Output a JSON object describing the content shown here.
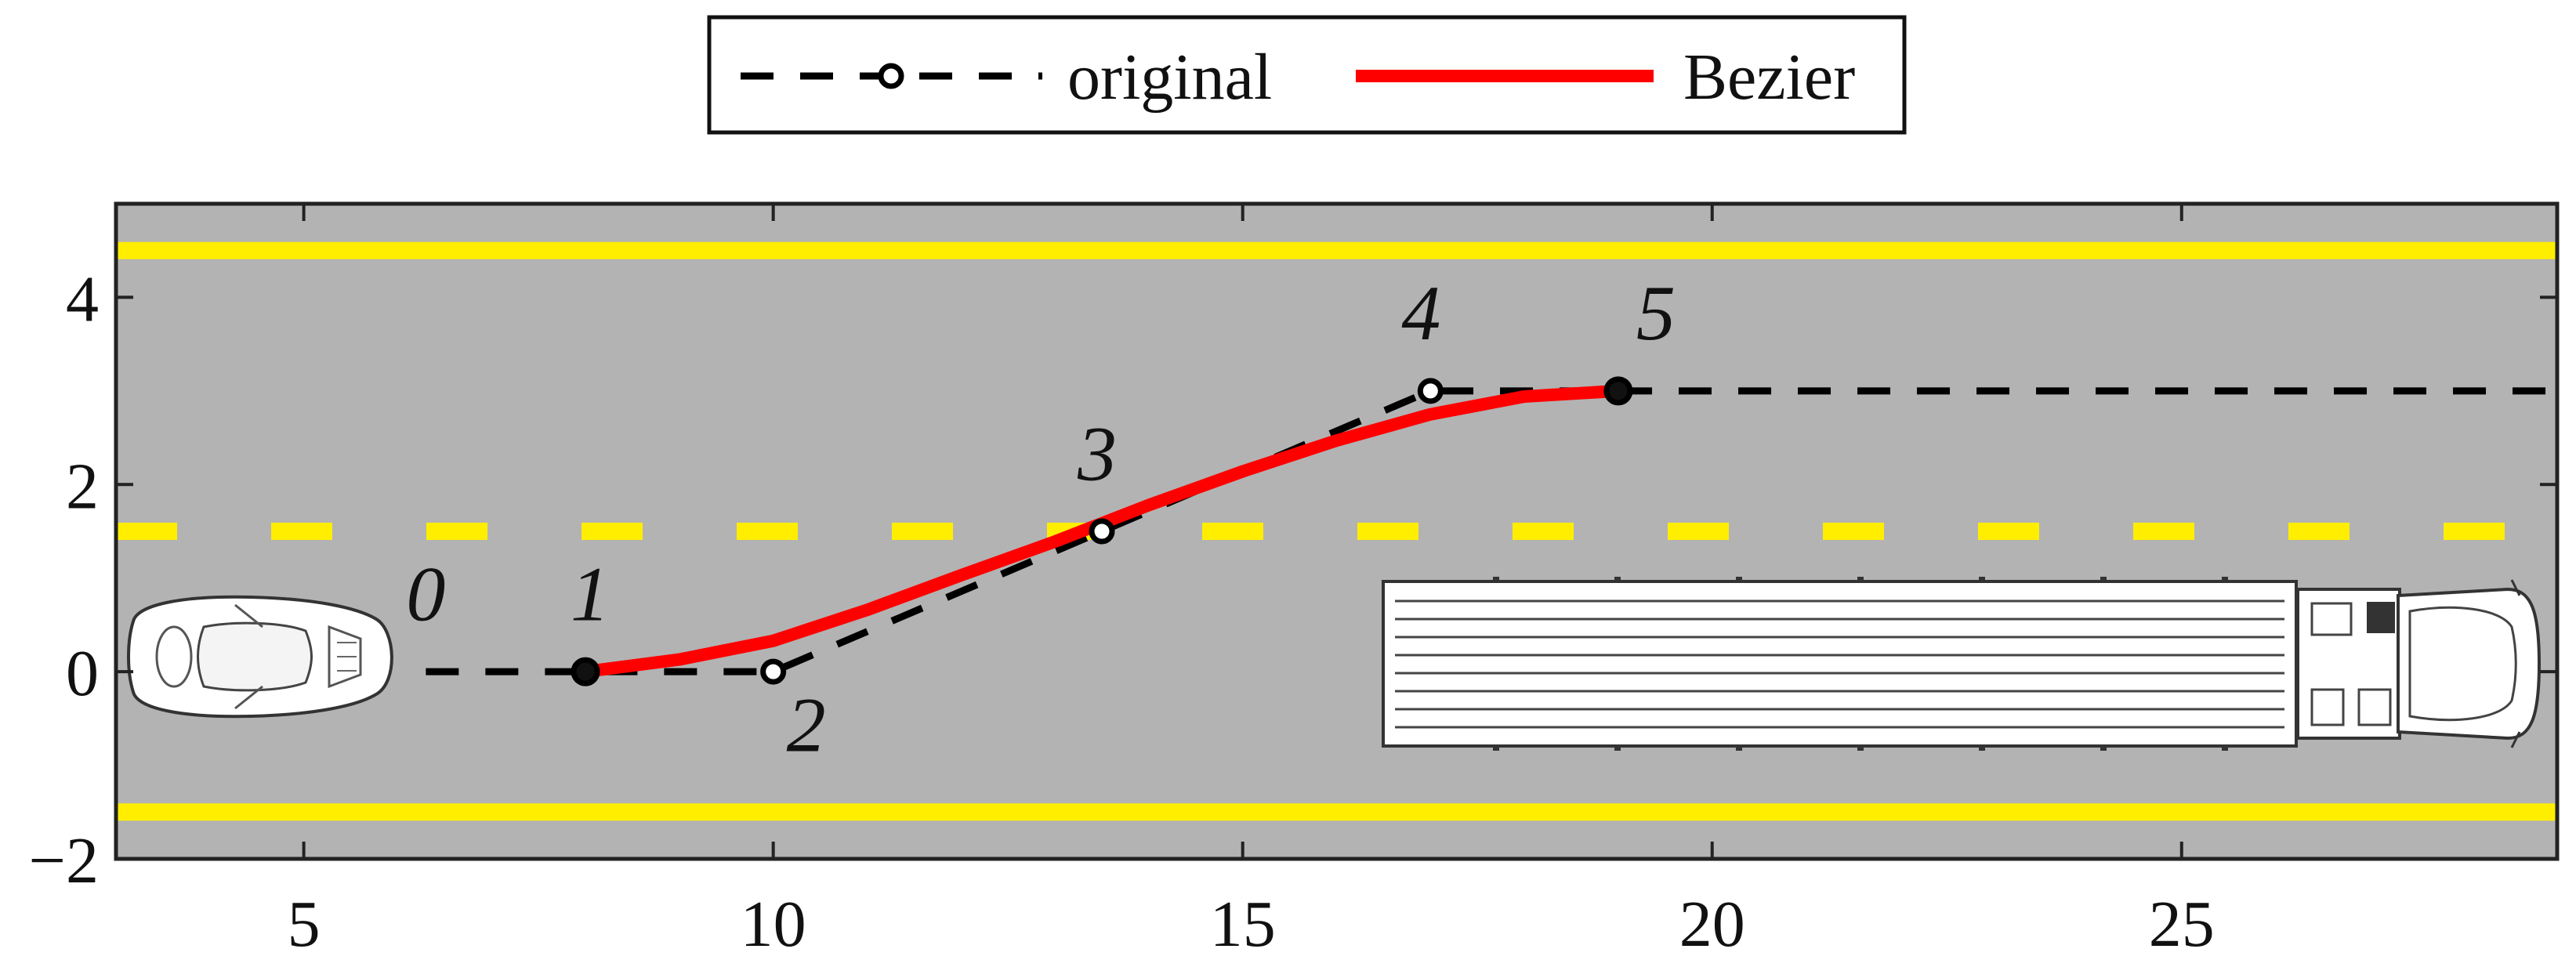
{
  "chart_data": {
    "type": "line",
    "xlim": [
      3,
      29
    ],
    "ylim": [
      -2,
      5
    ],
    "x_ticks": [
      5,
      10,
      15,
      20,
      25
    ],
    "y_ticks": [
      -2,
      0,
      2,
      4
    ],
    "x_tick_labels": [
      "5",
      "10",
      "15",
      "20",
      "25"
    ],
    "y_tick_labels": [
      "−2",
      "0",
      "2",
      "4"
    ],
    "grid": false,
    "legend": {
      "placement": "top-center-outside",
      "entries": [
        "original",
        "Bezier"
      ]
    },
    "road": {
      "background_color": "#b3b3b3",
      "lane_line_color": "#ffee00",
      "solid_lines_y": [
        4.5,
        -1.5
      ],
      "dashed_line_y": 1.5
    },
    "series": [
      {
        "name": "original",
        "style": "dashed-black-with-circle-markers",
        "color": "#000000",
        "x": [
          6.3,
          8,
          10,
          13.5,
          17,
          19,
          29
        ],
        "y": [
          0,
          0,
          0,
          1.5,
          3,
          3,
          3
        ]
      },
      {
        "name": "Bezier",
        "style": "solid-red",
        "color": "#ff0000",
        "x": [
          8,
          9,
          10,
          11,
          12,
          13,
          14,
          15,
          16,
          17,
          18,
          19
        ],
        "y": [
          0.0,
          0.13,
          0.33,
          0.66,
          1.03,
          1.39,
          1.78,
          2.14,
          2.47,
          2.75,
          2.94,
          3.0
        ]
      }
    ],
    "point_labels": [
      {
        "text": "0",
        "x": 6.3,
        "y": 0.55
      },
      {
        "text": "1",
        "x": 8.05,
        "y": 0.55
      },
      {
        "text": "2",
        "x": 10.35,
        "y": -0.85
      },
      {
        "text": "3",
        "x": 13.45,
        "y": 2.05
      },
      {
        "text": "4",
        "x": 16.9,
        "y": 3.55
      },
      {
        "text": "5",
        "x": 19.4,
        "y": 3.55
      }
    ],
    "icons": [
      {
        "name": "sports-car-icon",
        "x_range": [
          3.2,
          6.0
        ],
        "y_range": [
          -0.55,
          0.6
        ]
      },
      {
        "name": "semi-truck-icon",
        "x_range": [
          16.5,
          28.9
        ],
        "y_range": [
          -0.95,
          1.0
        ]
      }
    ]
  },
  "legend": {
    "original_label": "original",
    "bezier_label": "Bezier"
  }
}
